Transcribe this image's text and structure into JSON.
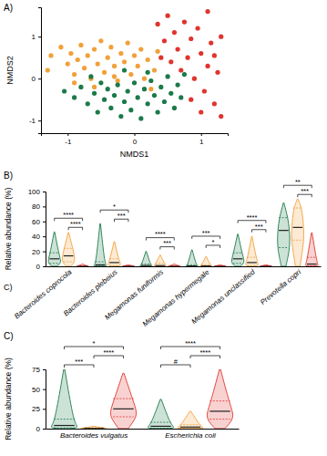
{
  "chart_data": [
    {
      "type": "scatter",
      "panel_label": "A)",
      "x_label": "NMDS1",
      "y_label": "NMDS2",
      "xlim": [
        -1.4,
        1.4
      ],
      "ylim": [
        -1.3,
        1.7
      ],
      "xticks": [
        -1,
        0,
        1
      ],
      "yticks": [
        -1,
        0,
        1
      ],
      "marker": "circle",
      "series": [
        {
          "color": "#f2a03a",
          "x": [
            -1.25,
            -1.3,
            -1.1,
            -1.0,
            -0.95,
            -0.9,
            -0.85,
            -0.8,
            -0.75,
            -0.7,
            -0.65,
            -0.6,
            -0.55,
            -0.5,
            -0.45,
            -0.4,
            -0.35,
            -0.3,
            -0.25,
            -0.2,
            -0.15,
            -0.1,
            -0.05,
            0.0,
            0.05,
            0.1,
            0.15,
            0.2,
            0.3,
            0.35,
            -0.6,
            -0.9,
            0.25,
            -0.3
          ],
          "values": [
            0.55,
            0.2,
            0.75,
            0.35,
            0.6,
            0.1,
            0.45,
            0.8,
            0.25,
            0.55,
            0.0,
            0.7,
            0.35,
            0.9,
            0.15,
            0.5,
            0.75,
            0.3,
            -0.05,
            0.6,
            0.4,
            0.85,
            0.1,
            0.55,
            0.3,
            0.7,
            0.0,
            0.45,
            0.2,
            0.65,
            -0.2,
            -0.1,
            -0.25,
            0.05
          ]
        },
        {
          "color": "#1b7a4a",
          "x": [
            -1.05,
            -0.9,
            -0.8,
            -0.7,
            -0.6,
            -0.55,
            -0.5,
            -0.45,
            -0.4,
            -0.35,
            -0.3,
            -0.25,
            -0.2,
            -0.15,
            -0.1,
            -0.05,
            0.0,
            0.05,
            0.1,
            0.15,
            0.2,
            0.25,
            0.3,
            0.35,
            0.4,
            0.45,
            0.5,
            0.55,
            0.6,
            0.65,
            0.7,
            0.75,
            -0.65,
            0.2,
            -0.15
          ],
          "values": [
            -0.3,
            -0.45,
            -0.2,
            -0.6,
            -0.35,
            -0.8,
            -0.1,
            -0.5,
            -0.25,
            -0.7,
            -0.4,
            -0.15,
            -0.9,
            -0.55,
            -0.3,
            -0.75,
            -0.1,
            -0.45,
            -0.95,
            -0.25,
            -0.6,
            -0.05,
            -0.4,
            -0.8,
            -0.2,
            -0.55,
            0.05,
            -0.35,
            -0.7,
            -0.15,
            -0.45,
            0.1,
            0.05,
            0.15,
            0.2
          ]
        },
        {
          "color": "#e0342e",
          "x": [
            0.35,
            0.45,
            0.5,
            0.55,
            0.6,
            0.65,
            0.7,
            0.75,
            0.8,
            0.85,
            0.9,
            0.95,
            1.0,
            1.05,
            1.1,
            1.15,
            1.2,
            1.25,
            1.3,
            1.3,
            1.0,
            0.85,
            1.2,
            0.4,
            1.1
          ],
          "values": [
            1.3,
            0.9,
            1.5,
            0.4,
            1.1,
            0.7,
            0.2,
            1.35,
            0.5,
            0.95,
            0.0,
            1.2,
            0.6,
            -0.3,
            0.3,
            0.85,
            -0.6,
            0.15,
            1.0,
            -0.9,
            -0.8,
            -0.5,
            0.55,
            0.5,
            1.6
          ]
        }
      ]
    },
    {
      "type": "violin",
      "panel_label": "B)",
      "annotation": "C)",
      "y_label": "Relative abundance (%)",
      "categories": [
        "Bacteroides coprocola",
        "Bacteroides plebeius",
        "Megamonas funiformis",
        "Megamonas hypermegale",
        "Megamonas unclassified",
        "Prevotella copri"
      ],
      "ylim": [
        0,
        100
      ],
      "yticks": [
        0,
        20,
        40,
        60,
        80,
        100
      ],
      "series": [
        {
          "color": "#1b7a4a",
          "min": [
            0,
            0,
            0,
            0,
            0,
            0
          ],
          "q1": [
            4,
            0.5,
            0.2,
            0.1,
            4,
            25
          ],
          "median": [
            10,
            2,
            1,
            0.5,
            10,
            48
          ],
          "q3": [
            18,
            6,
            3,
            2,
            18,
            65
          ],
          "max": [
            46,
            57,
            20,
            22,
            43,
            85
          ]
        },
        {
          "color": "#f2a03a",
          "min": [
            0,
            0,
            0,
            0,
            0,
            0
          ],
          "q1": [
            6,
            1,
            0.3,
            0.1,
            1,
            35
          ],
          "median": [
            14,
            5,
            1,
            0.5,
            5,
            52
          ],
          "q3": [
            24,
            10,
            4,
            2,
            12,
            78
          ],
          "max": [
            45,
            33,
            15,
            13,
            40,
            90
          ]
        },
        {
          "color": "#e0342e",
          "min": [
            0,
            0,
            0,
            0,
            0,
            0
          ],
          "q1": [
            0,
            0,
            0,
            0,
            0,
            0.5
          ],
          "median": [
            0.2,
            0.2,
            0.2,
            0.1,
            0.2,
            3
          ],
          "q3": [
            0.5,
            0.5,
            0.6,
            0.4,
            0.5,
            12
          ],
          "max": [
            3,
            2,
            3,
            2,
            2,
            45
          ]
        }
      ],
      "significance": [
        {
          "category": 0,
          "groups": [
            1,
            2
          ],
          "label": "****"
        },
        {
          "category": 0,
          "groups": [
            0,
            2
          ],
          "label": "****"
        },
        {
          "category": 1,
          "groups": [
            1,
            2
          ],
          "label": "***"
        },
        {
          "category": 1,
          "groups": [
            0,
            2
          ],
          "label": "*"
        },
        {
          "category": 2,
          "groups": [
            1,
            2
          ],
          "label": "***"
        },
        {
          "category": 2,
          "groups": [
            0,
            2
          ],
          "label": "****"
        },
        {
          "category": 3,
          "groups": [
            1,
            2
          ],
          "label": "*"
        },
        {
          "category": 3,
          "groups": [
            0,
            2
          ],
          "label": "***"
        },
        {
          "category": 4,
          "groups": [
            1,
            2
          ],
          "label": "***"
        },
        {
          "category": 4,
          "groups": [
            0,
            2
          ],
          "label": "****"
        },
        {
          "category": 5,
          "groups": [
            1,
            2
          ],
          "label": "***"
        },
        {
          "category": 5,
          "groups": [
            0,
            2
          ],
          "label": "**"
        }
      ]
    },
    {
      "type": "violin",
      "panel_label": "C)",
      "y_label": "Relative abundance (%)",
      "categories": [
        "Bacteroides vulgatus",
        "Escherichia coli"
      ],
      "ylim": [
        0,
        75
      ],
      "yticks": [
        0,
        25,
        50,
        75
      ],
      "series": [
        {
          "color": "#1b7a4a",
          "min": [
            0,
            0
          ],
          "q1": [
            1,
            0.5
          ],
          "median": [
            4,
            3
          ],
          "q3": [
            12,
            8
          ],
          "max": [
            75,
            37
          ]
        },
        {
          "color": "#f2a03a",
          "min": [
            0,
            0
          ],
          "q1": [
            0.1,
            0.3
          ],
          "median": [
            0.5,
            2
          ],
          "q3": [
            1,
            5
          ],
          "max": [
            3,
            22
          ]
        },
        {
          "color": "#e0342e",
          "min": [
            0,
            0
          ],
          "q1": [
            15,
            12
          ],
          "median": [
            25,
            22
          ],
          "q3": [
            38,
            35
          ],
          "max": [
            70,
            75
          ]
        }
      ],
      "significance": [
        {
          "category": 0,
          "groups": [
            0,
            1
          ],
          "label": "***"
        },
        {
          "category": 0,
          "groups": [
            1,
            2
          ],
          "label": "****"
        },
        {
          "category": 0,
          "groups": [
            0,
            2
          ],
          "label": "*"
        },
        {
          "category": 1,
          "groups": [
            0,
            1
          ],
          "label": "#"
        },
        {
          "category": 1,
          "groups": [
            1,
            2
          ],
          "label": "****"
        },
        {
          "category": 1,
          "groups": [
            0,
            2
          ],
          "label": "****"
        }
      ]
    }
  ]
}
